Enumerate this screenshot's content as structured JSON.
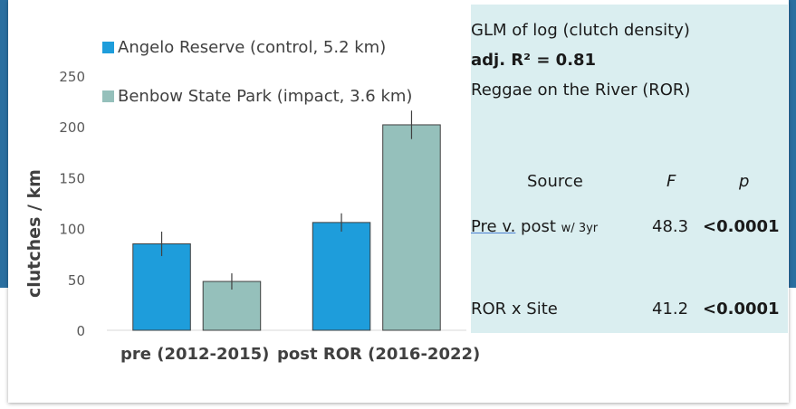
{
  "chart_data": {
    "type": "bar",
    "categories": [
      "pre (2012-2015)",
      "post ROR (2016-2022)"
    ],
    "series": [
      {
        "name": "Angelo Reserve (control, 5.2 km)",
        "values": [
          85,
          106
        ],
        "errors": [
          12,
          9
        ],
        "color": "#1e9ddb"
      },
      {
        "name": "Benbow State Park (impact, 3.6 km)",
        "values": [
          48,
          202
        ],
        "errors": [
          8,
          14
        ],
        "color": "#95c0bb"
      }
    ],
    "title": "",
    "xlabel": "",
    "ylabel": "clutches / km",
    "ylim": [
      0,
      250
    ],
    "yticks": [
      0,
      50,
      100,
      150,
      200,
      250
    ],
    "grid": false,
    "legend": "top-left"
  },
  "stats": {
    "title": "GLM of log (clutch density)",
    "adj_r2": "adj. R² = 0.81",
    "subtitle": "Reggae on the River (ROR)",
    "headers": {
      "source": "Source",
      "f": "F",
      "p": "p"
    },
    "rows": [
      {
        "source_link": "Pre v.",
        "source_rest": " post",
        "source_sub": "w/ 3yr",
        "f": "48.3",
        "p": "<0.0001"
      },
      {
        "source": "ROR x Site",
        "f": "41.2",
        "p": "<0.0001"
      }
    ]
  }
}
